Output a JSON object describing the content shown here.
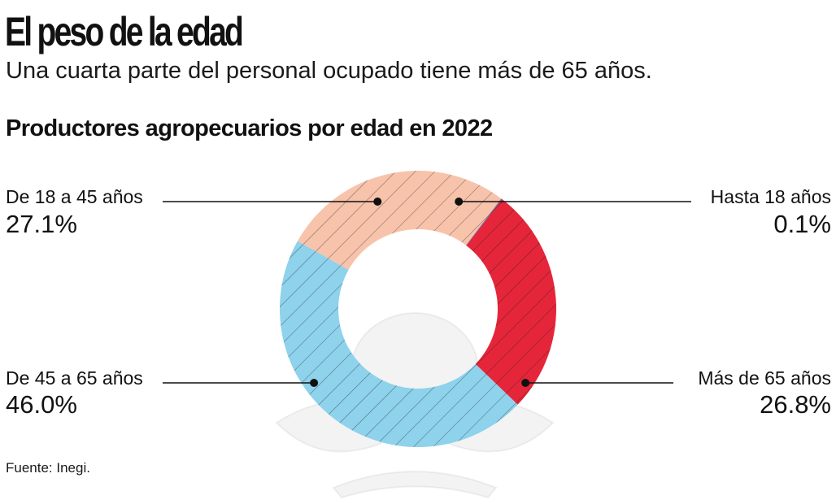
{
  "header": {
    "title": "El peso de la edad",
    "subtitle": "Una cuarta parte del personal ocupado tiene más de 65 años.",
    "chart_title": "Productores agropecuarios por edad en 2022"
  },
  "footer": {
    "source": "Fuente: Inegi."
  },
  "colors": {
    "hasta_18": "#3a7bbf",
    "de_18_45": "#f8c3ab",
    "de_45_65": "#8ed2ec",
    "mas_65": "#e5263a",
    "leader": "#111111"
  },
  "chart_data": {
    "type": "pie",
    "subtype": "donut",
    "title": "Productores agropecuarios por edad en 2022",
    "unit": "%",
    "categories": [
      "Hasta 18 años",
      "Más de 65 años",
      "De 45 a 65 años",
      "De 18 a 45 años"
    ],
    "values": [
      0.1,
      26.8,
      46.0,
      27.1
    ],
    "labels": [
      "0.1%",
      "26.8%",
      "46.0%",
      "27.1%"
    ],
    "hatched": true
  }
}
